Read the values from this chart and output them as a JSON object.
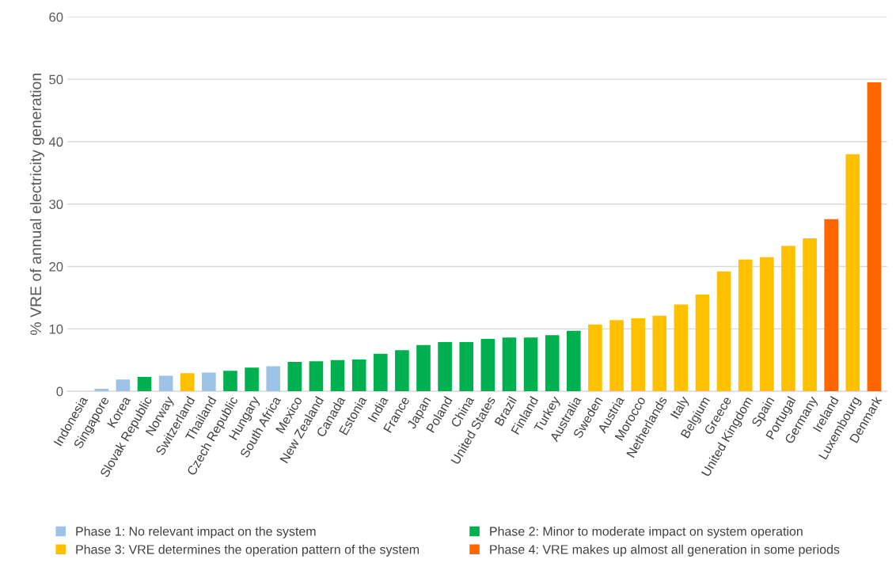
{
  "chart_data": {
    "type": "bar",
    "ylabel": "% VRE of annual electricity generation",
    "categories": [
      "Indonesia",
      "Singapore",
      "Korea",
      "Slovak Republic",
      "Norway",
      "Switzerland",
      "Thailand",
      "Czech Republic",
      "Hungary",
      "South Africa",
      "Mexico",
      "New Zealand",
      "Canada",
      "Estonia",
      "India",
      "France",
      "Japan",
      "Poland",
      "China",
      "United States",
      "Brazil",
      "Finland",
      "Turkey",
      "Australia",
      "Sweden",
      "Austria",
      "Morocco",
      "Netherlands",
      "Italy",
      "Belgium",
      "Greece",
      "United Kingdom",
      "Spain",
      "Portugal",
      "Germany",
      "Ireland",
      "Luxembourg",
      "Denmark"
    ],
    "series": [
      {
        "name": "Phase 1: No relevant impact on the system",
        "color": "#9dc3e6",
        "values": [
          0,
          0.4,
          1.9,
          null,
          2.5,
          null,
          3.0,
          null,
          null,
          4.0,
          null,
          null,
          null,
          null,
          null,
          null,
          null,
          null,
          null,
          null,
          null,
          null,
          null,
          null,
          null,
          null,
          null,
          null,
          null,
          null,
          null,
          null,
          null,
          null,
          null,
          null,
          null,
          null
        ]
      },
      {
        "name": "Phase 2: Minor to moderate impact on system operation",
        "color": "#00b050",
        "values": [
          null,
          null,
          null,
          2.3,
          null,
          null,
          null,
          3.3,
          3.8,
          null,
          4.7,
          4.8,
          5.0,
          5.1,
          6.0,
          6.6,
          7.4,
          7.9,
          7.9,
          8.4,
          8.6,
          8.6,
          9.0,
          9.7,
          null,
          null,
          null,
          null,
          null,
          null,
          null,
          null,
          null,
          null,
          null,
          null,
          null,
          null
        ]
      },
      {
        "name": "Phase 3: VRE determines the operation pattern of the system",
        "color": "#ffc000",
        "values": [
          null,
          null,
          null,
          null,
          null,
          2.9,
          null,
          null,
          null,
          null,
          null,
          null,
          null,
          null,
          null,
          null,
          null,
          null,
          null,
          null,
          null,
          null,
          null,
          null,
          10.7,
          11.4,
          11.7,
          12.1,
          13.9,
          15.5,
          19.2,
          21.1,
          21.5,
          23.3,
          24.5,
          null,
          38.0,
          null
        ]
      },
      {
        "name": "Phase 4: VRE makes up almost all generation in some periods",
        "color": "#ff6600",
        "values": [
          null,
          null,
          null,
          null,
          null,
          null,
          null,
          null,
          null,
          null,
          null,
          null,
          null,
          null,
          null,
          null,
          null,
          null,
          null,
          null,
          null,
          null,
          null,
          null,
          null,
          null,
          null,
          null,
          null,
          null,
          null,
          null,
          null,
          null,
          null,
          27.6,
          null,
          49.5
        ]
      }
    ],
    "ylim": [
      0,
      60
    ],
    "yticks": [
      0,
      10,
      20,
      30,
      40,
      50,
      60
    ],
    "grid": "y",
    "legend": "bottom"
  }
}
